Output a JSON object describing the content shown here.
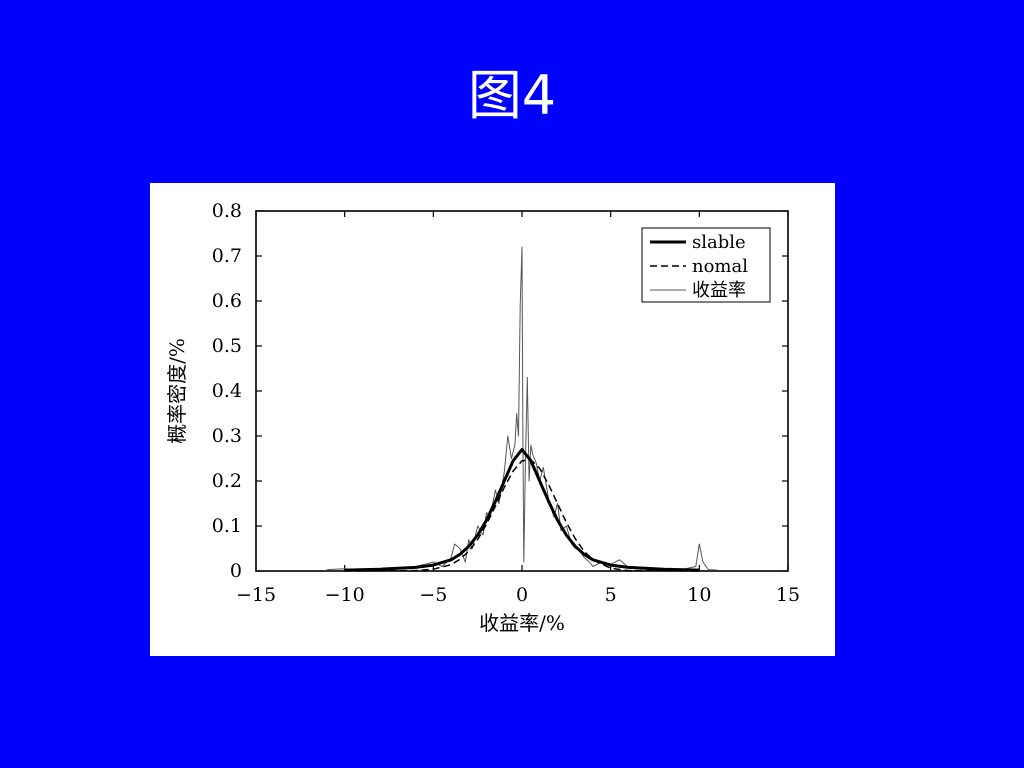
{
  "slide": {
    "title": "图4",
    "background_color": "#0000FF",
    "title_color": "#FFFFFF"
  },
  "chart_data": {
    "type": "line",
    "xlabel": "收益率/%",
    "ylabel": "概率密度/%",
    "xlim": [
      -15,
      15
    ],
    "ylim": [
      0,
      0.8
    ],
    "xticks": [
      -15,
      -10,
      -5,
      0,
      5,
      10,
      15
    ],
    "xtick_labels": [
      "−15",
      "−10",
      "−5",
      "0",
      "5",
      "10",
      "15"
    ],
    "yticks": [
      0,
      0.1,
      0.2,
      0.3,
      0.4,
      0.5,
      0.6,
      0.7,
      0.8
    ],
    "ytick_labels": [
      "0",
      "0.1",
      "0.2",
      "0.3",
      "0.4",
      "0.5",
      "0.6",
      "0.7",
      "0.8"
    ],
    "grid": false,
    "legend": {
      "position": "top-right"
    },
    "series": [
      {
        "name": "slable",
        "style": "solid-thick",
        "x": [
          -10,
          -8,
          -6,
          -5,
          -4,
          -3.5,
          -3,
          -2.5,
          -2,
          -1.5,
          -1,
          -0.5,
          0,
          0.5,
          1,
          1.5,
          2,
          2.5,
          3,
          3.5,
          4,
          5,
          6,
          8,
          10
        ],
        "y": [
          0.002,
          0.004,
          0.008,
          0.013,
          0.025,
          0.037,
          0.055,
          0.08,
          0.113,
          0.155,
          0.2,
          0.245,
          0.27,
          0.245,
          0.2,
          0.155,
          0.113,
          0.08,
          0.055,
          0.037,
          0.025,
          0.013,
          0.008,
          0.004,
          0.002
        ]
      },
      {
        "name": "nomal",
        "style": "dashed",
        "x": [
          -10,
          -6,
          -5,
          -4,
          -3.5,
          -3,
          -2.5,
          -2,
          -1.5,
          -1,
          -0.5,
          0,
          0.5,
          1,
          1.5,
          2,
          2.5,
          3,
          3.5,
          4,
          5,
          6,
          10
        ],
        "y": [
          0,
          0.001,
          0.004,
          0.014,
          0.026,
          0.044,
          0.07,
          0.104,
          0.144,
          0.186,
          0.222,
          0.245,
          0.247,
          0.228,
          0.192,
          0.15,
          0.108,
          0.072,
          0.044,
          0.025,
          0.006,
          0.001,
          0
        ]
      },
      {
        "name": "收益率",
        "style": "solid-thin",
        "x": [
          -11,
          -10,
          -9,
          -8,
          -7,
          -6,
          -5.5,
          -5,
          -4.5,
          -4,
          -3.8,
          -3.5,
          -3.2,
          -3,
          -2.8,
          -2.5,
          -2.2,
          -2,
          -1.8,
          -1.5,
          -1.3,
          -1,
          -0.8,
          -0.6,
          -0.4,
          -0.3,
          -0.2,
          -0.1,
          0,
          0.05,
          0.1,
          0.2,
          0.3,
          0.4,
          0.5,
          0.6,
          0.8,
          1,
          1.2,
          1.5,
          1.8,
          2,
          2.2,
          2.5,
          2.8,
          3,
          3.2,
          3.5,
          3.8,
          4,
          4.5,
          5,
          5.5,
          6,
          7,
          8,
          9,
          9.8,
          10,
          10.2,
          10.5,
          11
        ],
        "y": [
          0.003,
          0.005,
          0.002,
          0.004,
          0.006,
          0.01,
          0.015,
          0.02,
          0.01,
          0.03,
          0.06,
          0.05,
          0.02,
          0.07,
          0.05,
          0.1,
          0.08,
          0.13,
          0.12,
          0.18,
          0.15,
          0.22,
          0.3,
          0.25,
          0.28,
          0.35,
          0.3,
          0.59,
          0.72,
          0.3,
          0.02,
          0.25,
          0.43,
          0.2,
          0.28,
          0.26,
          0.24,
          0.2,
          0.23,
          0.16,
          0.12,
          0.15,
          0.09,
          0.1,
          0.06,
          0.05,
          0.05,
          0.03,
          0.02,
          0.01,
          0.02,
          0.015,
          0.025,
          0.008,
          0.008,
          0.005,
          0.003,
          0.01,
          0.06,
          0.02,
          0.003,
          0.002
        ]
      }
    ]
  }
}
